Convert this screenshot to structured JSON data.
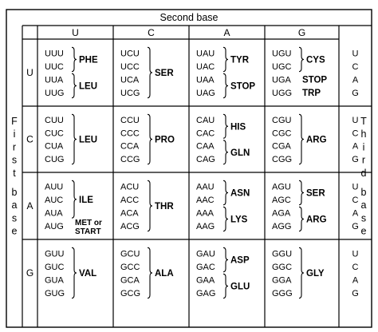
{
  "title": "Second base",
  "first_base_label": "First base",
  "third_base_label": "Third base",
  "second_bases": [
    "U",
    "C",
    "A",
    "G"
  ],
  "first_bases": [
    "U",
    "C",
    "A",
    "G"
  ],
  "third_bases": [
    "U",
    "C",
    "A",
    "G"
  ],
  "cells": [
    [
      {
        "codons": [
          "UUU",
          "UUC",
          "UUA",
          "UUG"
        ],
        "groups": [
          {
            "rows": [
              0,
              1
            ],
            "label": "PHE"
          },
          {
            "rows": [
              2,
              3
            ],
            "label": "LEU"
          }
        ]
      },
      {
        "codons": [
          "UCU",
          "UCC",
          "UCA",
          "UCG"
        ],
        "groups": [
          {
            "rows": [
              0,
              3
            ],
            "label": "SER"
          }
        ]
      },
      {
        "codons": [
          "UAU",
          "UAC",
          "UAA",
          "UAG"
        ],
        "groups": [
          {
            "rows": [
              0,
              1
            ],
            "label": "TYR"
          },
          {
            "rows": [
              2,
              3
            ],
            "label": "STOP"
          }
        ]
      },
      {
        "codons": [
          "UGU",
          "UGC",
          "UGA",
          "UGG"
        ],
        "groups": [
          {
            "rows": [
              0,
              1
            ],
            "label": "CYS"
          },
          {
            "rows": [
              2,
              2
            ],
            "label": "STOP"
          },
          {
            "rows": [
              3,
              3
            ],
            "label": "TRP"
          }
        ]
      }
    ],
    [
      {
        "codons": [
          "CUU",
          "CUC",
          "CUA",
          "CUG"
        ],
        "groups": [
          {
            "rows": [
              0,
              3
            ],
            "label": "LEU"
          }
        ]
      },
      {
        "codons": [
          "CCU",
          "CCC",
          "CCA",
          "CCG"
        ],
        "groups": [
          {
            "rows": [
              0,
              3
            ],
            "label": "PRO"
          }
        ]
      },
      {
        "codons": [
          "CAU",
          "CAC",
          "CAA",
          "CAG"
        ],
        "groups": [
          {
            "rows": [
              0,
              1
            ],
            "label": "HIS"
          },
          {
            "rows": [
              2,
              3
            ],
            "label": "GLN"
          }
        ]
      },
      {
        "codons": [
          "CGU",
          "CGC",
          "CGA",
          "CGG"
        ],
        "groups": [
          {
            "rows": [
              0,
              3
            ],
            "label": "ARG"
          }
        ]
      }
    ],
    [
      {
        "codons": [
          "AUU",
          "AUC",
          "AUA",
          "AUG"
        ],
        "groups": [
          {
            "rows": [
              0,
              2
            ],
            "label": "ILE"
          },
          {
            "rows": [
              3,
              3
            ],
            "label": "MET or START"
          }
        ]
      },
      {
        "codons": [
          "ACU",
          "ACC",
          "ACA",
          "ACG"
        ],
        "groups": [
          {
            "rows": [
              0,
              3
            ],
            "label": "THR"
          }
        ]
      },
      {
        "codons": [
          "AAU",
          "AAC",
          "AAA",
          "AAG"
        ],
        "groups": [
          {
            "rows": [
              0,
              1
            ],
            "label": "ASN"
          },
          {
            "rows": [
              2,
              3
            ],
            "label": "LYS"
          }
        ]
      },
      {
        "codons": [
          "AGU",
          "AGC",
          "AGA",
          "AGG"
        ],
        "groups": [
          {
            "rows": [
              0,
              1
            ],
            "label": "SER"
          },
          {
            "rows": [
              2,
              3
            ],
            "label": "ARG"
          }
        ]
      }
    ],
    [
      {
        "codons": [
          "GUU",
          "GUC",
          "GUA",
          "GUG"
        ],
        "groups": [
          {
            "rows": [
              0,
              3
            ],
            "label": "VAL"
          }
        ]
      },
      {
        "codons": [
          "GCU",
          "GCC",
          "GCA",
          "GCG"
        ],
        "groups": [
          {
            "rows": [
              0,
              3
            ],
            "label": "ALA"
          }
        ]
      },
      {
        "codons": [
          "GAU",
          "GAC",
          "GAA",
          "GAG"
        ],
        "groups": [
          {
            "rows": [
              0,
              1
            ],
            "label": "ASP"
          },
          {
            "rows": [
              2,
              3
            ],
            "label": "GLU"
          }
        ]
      },
      {
        "codons": [
          "GGU",
          "GGC",
          "GGA",
          "GGG"
        ],
        "groups": [
          {
            "rows": [
              0,
              3
            ],
            "label": "GLY"
          }
        ]
      }
    ]
  ]
}
